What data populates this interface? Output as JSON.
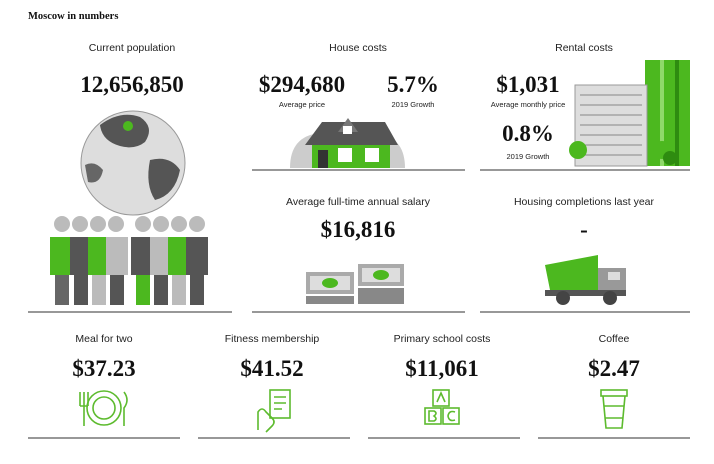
{
  "title": "Moscow in numbers",
  "population": {
    "label": "Current population",
    "value": "12,656,850"
  },
  "house_costs": {
    "label": "House costs",
    "price": "$294,680",
    "price_caption": "Average price",
    "growth": "5.7%",
    "growth_caption": "2019 Growth"
  },
  "rental_costs": {
    "label": "Rental costs",
    "price": "$1,031",
    "price_caption": "Average monthly price",
    "growth": "0.8%",
    "growth_caption": "2019 Growth"
  },
  "salary": {
    "label": "Average full-time annual salary",
    "value": "$16,816"
  },
  "housing_completions": {
    "label": "Housing completions last year",
    "value": "-"
  },
  "costs": [
    {
      "label": "Meal for two",
      "value": "$37.23"
    },
    {
      "label": "Fitness membership",
      "value": "$41.52"
    },
    {
      "label": "Primary school costs",
      "value": "$11,061"
    },
    {
      "label": "Coffee",
      "value": "$2.47"
    }
  ]
}
